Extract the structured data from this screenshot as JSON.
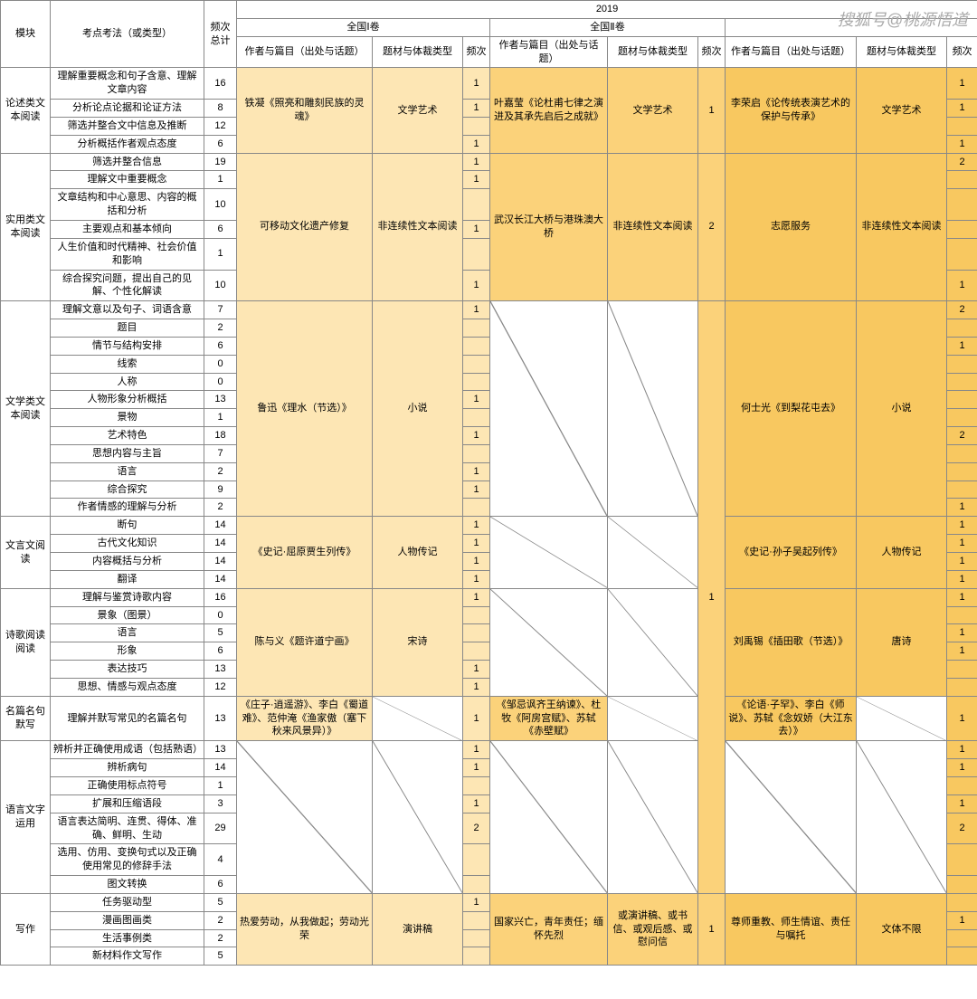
{
  "watermark": "搜狐号@桃源悟道",
  "year": "2019",
  "headers": {
    "mod": "模块",
    "point": "考点考法（或类型）",
    "freq_total": "频次总计",
    "paper1": "全国Ⅰ卷",
    "paper2": "全国Ⅱ卷",
    "author": "作者与篇目（出处与话题）",
    "topic": "题材与体裁类型",
    "freq": "频次"
  },
  "sections": [
    {
      "mod": "论述类文本阅读",
      "p1_author": "铁凝《照亮和雕刻民族的灵魂》",
      "p1_topic": "文学艺术",
      "p2_author": "叶嘉莹《论杜甫七律之演进及其承先启后之成就》",
      "p2_topic": "文学艺术",
      "p2_freq": "1",
      "p3_author": "李荣启《论传统表演艺术的保护与传承》",
      "p3_topic": "文学艺术",
      "rows": [
        {
          "pt": "理解重要概念和句子含意、理解文章内容",
          "tot": "16",
          "p1f": "1",
          "p3f": "1"
        },
        {
          "pt": "分析论点论据和论证方法",
          "tot": "8",
          "p1f": "1",
          "p3f": "1"
        },
        {
          "pt": "筛选并整合文中信息及推断",
          "tot": "12",
          "p1f": "",
          "p3f": ""
        },
        {
          "pt": "分析概括作者观点态度",
          "tot": "6",
          "p1f": "1",
          "p3f": "1"
        }
      ]
    },
    {
      "mod": "实用类文本阅读",
      "p1_author": "可移动文化遗产修复",
      "p1_topic": "非连续性文本阅读",
      "p2_author": "武汉长江大桥与港珠澳大桥",
      "p2_topic": "非连续性文本阅读",
      "p2_freq": "2",
      "p3_author": "志愿服务",
      "p3_topic": "非连续性文本阅读",
      "rows": [
        {
          "pt": "筛选并整合信息",
          "tot": "19",
          "p1f": "1",
          "p3f": "2"
        },
        {
          "pt": "理解文中重要概念",
          "tot": "1",
          "p1f": "1",
          "p3f": ""
        },
        {
          "pt": "文章结构和中心意思、内容的概括和分析",
          "tot": "10",
          "p1f": "",
          "p3f": ""
        },
        {
          "pt": "主要观点和基本倾向",
          "tot": "6",
          "p1f": "1",
          "p3f": ""
        },
        {
          "pt": "人生价值和时代精神、社会价值和影响",
          "tot": "1",
          "p1f": "",
          "p3f": ""
        },
        {
          "pt": "综合探究问题，提出自己的见解、个性化解读",
          "tot": "10",
          "p1f": "1",
          "p3f": "1"
        }
      ]
    },
    {
      "mod": "文学类文本阅读",
      "p1_author": "鲁迅《理水（节选）》",
      "p1_topic": "小说",
      "p3_author": "何士光《到梨花屯去》",
      "p3_topic": "小说",
      "rows": [
        {
          "pt": "理解文意以及句子、词语含意",
          "tot": "7",
          "p1f": "1",
          "p3f": "2"
        },
        {
          "pt": "题目",
          "tot": "2",
          "p1f": "",
          "p3f": ""
        },
        {
          "pt": "情节与结构安排",
          "tot": "6",
          "p1f": "",
          "p3f": "1"
        },
        {
          "pt": "线索",
          "tot": "0",
          "p1f": "",
          "p3f": ""
        },
        {
          "pt": "人称",
          "tot": "0",
          "p1f": "",
          "p3f": ""
        },
        {
          "pt": "人物形象分析概括",
          "tot": "13",
          "p1f": "1",
          "p3f": ""
        },
        {
          "pt": "景物",
          "tot": "1",
          "p1f": "",
          "p3f": ""
        },
        {
          "pt": "艺术特色",
          "tot": "18",
          "p1f": "1",
          "p3f": "2"
        },
        {
          "pt": "思想内容与主旨",
          "tot": "7",
          "p1f": "",
          "p3f": ""
        },
        {
          "pt": "语言",
          "tot": "2",
          "p1f": "1",
          "p3f": ""
        },
        {
          "pt": "综合探究",
          "tot": "9",
          "p1f": "1",
          "p3f": ""
        },
        {
          "pt": "作者情感的理解与分析",
          "tot": "2",
          "p1f": "",
          "p3f": "1"
        }
      ]
    },
    {
      "mod": "文言文阅读",
      "p1_author": "《史记·屈原贾生列传》",
      "p1_topic": "人物传记",
      "p3_author": "《史记·孙子吴起列传》",
      "p3_topic": "人物传记",
      "rows": [
        {
          "pt": "断句",
          "tot": "14",
          "p1f": "1",
          "p3f": "1"
        },
        {
          "pt": "古代文化知识",
          "tot": "14",
          "p1f": "1",
          "p3f": "1"
        },
        {
          "pt": "内容概括与分析",
          "tot": "14",
          "p1f": "1",
          "p3f": "1"
        },
        {
          "pt": "翻译",
          "tot": "14",
          "p1f": "1",
          "p3f": "1"
        }
      ]
    },
    {
      "mod": "诗歌阅读阅读",
      "p1_author": "陈与义《题许道宁画》",
      "p1_topic": "宋诗",
      "p3_author": "刘禹锡《插田歌（节选）》",
      "p3_topic": "唐诗",
      "rows": [
        {
          "pt": "理解与鉴赏诗歌内容",
          "tot": "16",
          "p1f": "1",
          "p3f": "1"
        },
        {
          "pt": "景象（图景）",
          "tot": "0",
          "p1f": "",
          "p3f": ""
        },
        {
          "pt": "语言",
          "tot": "5",
          "p1f": "",
          "p3f": "1"
        },
        {
          "pt": "形象",
          "tot": "6",
          "p1f": "",
          "p3f": "1"
        },
        {
          "pt": "表达技巧",
          "tot": "13",
          "p1f": "1",
          "p3f": ""
        },
        {
          "pt": "思想、情感与观点态度",
          "tot": "12",
          "p1f": "1",
          "p3f": ""
        }
      ]
    },
    {
      "mod": "名篇名句默写",
      "p1_author": "《庄子·逍遥游》、李白《蜀道难》、范仲淹《渔家傲（塞下秋来风景异）》",
      "p2_author": "《邹忌讽齐王纳谏》、杜牧《阿房宫赋》、苏轼《赤壁赋》",
      "p3_author": "《论语·子罕》、李白《师说》、苏轼《念奴娇（大江东去）》",
      "rows": [
        {
          "pt": "理解并默写常见的名篇名句",
          "tot": "13",
          "p1f": "1",
          "p3f": "1"
        }
      ]
    },
    {
      "mod": "语言文字运用",
      "rows": [
        {
          "pt": "辨析并正确使用成语（包括熟语）",
          "tot": "13",
          "p1f": "1",
          "p3f": "1"
        },
        {
          "pt": "辨析病句",
          "tot": "14",
          "p1f": "1",
          "p3f": "1"
        },
        {
          "pt": "正确使用标点符号",
          "tot": "1",
          "p1f": "",
          "p3f": ""
        },
        {
          "pt": "扩展和压缩语段",
          "tot": "3",
          "p1f": "1",
          "p3f": "1"
        },
        {
          "pt": "语言表达简明、连贯、得体、准确、鲜明、生动",
          "tot": "29",
          "p1f": "2",
          "p3f": "2"
        },
        {
          "pt": "选用、仿用、变换句式以及正确使用常见的修辞手法",
          "tot": "4",
          "p1f": "",
          "p3f": ""
        },
        {
          "pt": "图文转换",
          "tot": "6",
          "p1f": "",
          "p3f": ""
        }
      ]
    },
    {
      "mod": "写作",
      "p1_author": "热爱劳动，从我做起；劳动光荣",
      "p1_topic": "演讲稿",
      "p2_author": "国家兴亡，青年责任；缅怀先烈",
      "p2_topic": "或演讲稿、或书信、或观后感、或慰问信",
      "p2_freq": "1",
      "p3_author": "尊师重教、师生情谊、责任与嘱托",
      "p3_topic": "文体不限",
      "rows": [
        {
          "pt": "任务驱动型",
          "tot": "5",
          "p1f": "1",
          "p3f": ""
        },
        {
          "pt": "漫画图画类",
          "tot": "2",
          "p1f": "",
          "p3f": "1"
        },
        {
          "pt": "生活事例类",
          "tot": "2",
          "p1f": "",
          "p3f": ""
        },
        {
          "pt": "新材料作文写作",
          "tot": "5",
          "p1f": "",
          "p3f": ""
        }
      ]
    }
  ],
  "big_p2_freq": "1"
}
